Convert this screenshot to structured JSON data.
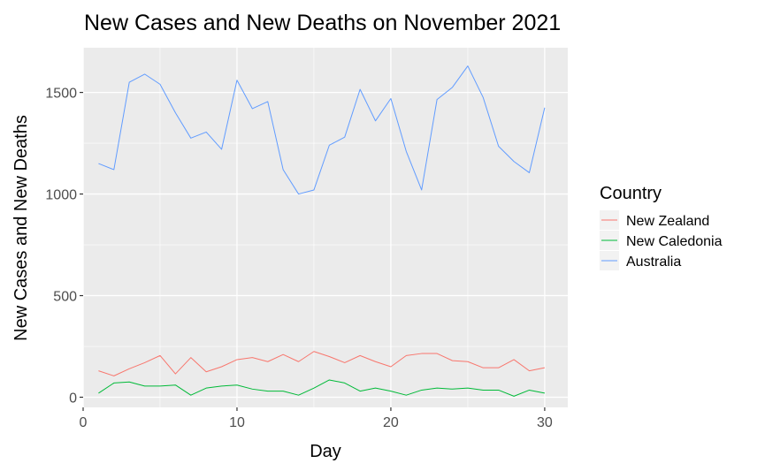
{
  "chart_data": {
    "type": "line",
    "title": "New Cases and New Deaths on November 2021",
    "xlabel": "Day",
    "ylabel": "New Cases and New Deaths",
    "xlim": [
      0,
      31.5
    ],
    "ylim": [
      -50,
      1720
    ],
    "x_ticks": [
      0,
      10,
      20,
      30
    ],
    "y_ticks": [
      0,
      500,
      1000,
      1500
    ],
    "x_tick_labels": [
      "0",
      "10",
      "20",
      "30"
    ],
    "y_tick_labels": [
      "0",
      "500",
      "1000",
      "1500"
    ],
    "grid": true,
    "legend_position": "right",
    "legend_title": "Country",
    "x": [
      1,
      2,
      3,
      4,
      5,
      6,
      7,
      8,
      9,
      10,
      11,
      12,
      13,
      14,
      15,
      16,
      17,
      18,
      19,
      20,
      21,
      22,
      23,
      24,
      25,
      26,
      27,
      28,
      29,
      30
    ],
    "series": [
      {
        "name": "New Zealand",
        "color": "#F8766D",
        "values": [
          130,
          105,
          140,
          170,
          205,
          115,
          195,
          125,
          150,
          185,
          195,
          175,
          210,
          175,
          225,
          200,
          170,
          205,
          175,
          150,
          205,
          215,
          215,
          180,
          175,
          145,
          145,
          185,
          130,
          145
        ]
      },
      {
        "name": "New Caledonia",
        "color": "#00BA38",
        "values": [
          20,
          70,
          75,
          55,
          55,
          60,
          10,
          45,
          55,
          60,
          40,
          30,
          30,
          10,
          45,
          85,
          70,
          30,
          45,
          30,
          10,
          35,
          45,
          40,
          45,
          35,
          35,
          5,
          35,
          20
        ]
      },
      {
        "name": "Australia",
        "color": "#619CFF",
        "values": [
          1150,
          1120,
          1550,
          1590,
          1540,
          1400,
          1275,
          1305,
          1220,
          1560,
          1420,
          1455,
          1120,
          1000,
          1020,
          1240,
          1280,
          1515,
          1360,
          1470,
          1210,
          1020,
          1465,
          1525,
          1630,
          1475,
          1235,
          1160,
          1105,
          1425
        ]
      }
    ]
  }
}
